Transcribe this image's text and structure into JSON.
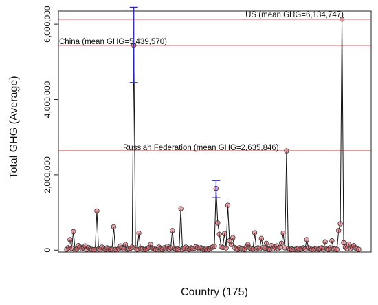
{
  "chart_data": {
    "type": "line",
    "title": "",
    "xlabel": "Country (175)",
    "ylabel": "Total GHG (Average)",
    "ylim": [
      -50000,
      6350000
    ],
    "yticks": [
      0,
      2000000,
      4000000,
      6000000
    ],
    "ytick_labels": [
      "0",
      "2,000,000",
      "4,000,000",
      "6,000,000"
    ],
    "x_count": 175,
    "grid": false,
    "colors": {
      "line": "#111111",
      "marker": "#e0606a",
      "marker_edge": "#333333",
      "reference": "#c0392b",
      "error_bar": "#2a2aa8"
    },
    "reference_lines": [
      {
        "label": "US (mean GHG=6,134,747)",
        "value": 6134747
      },
      {
        "label": "China (mean GHG=5,439,570)",
        "value": 5439570
      },
      {
        "label": "Russian Federation (mean GHG=2,635,846)",
        "value": 2635846
      }
    ],
    "error_bars": [
      {
        "x": 40,
        "low": 4450000,
        "high": 6450000
      },
      {
        "x": 89,
        "low": 1390000,
        "high": 1850000
      }
    ],
    "values": [
      20000,
      60000,
      280000,
      50000,
      490000,
      10000,
      30000,
      120000,
      80000,
      40000,
      60000,
      110000,
      20000,
      70000,
      30000,
      20000,
      10000,
      20000,
      1040000,
      30000,
      10000,
      80000,
      40000,
      20000,
      60000,
      30000,
      20000,
      30000,
      620000,
      20000,
      10000,
      40000,
      110000,
      60000,
      30000,
      150000,
      20000,
      40000,
      50000,
      80000,
      5439570,
      60000,
      20000,
      450000,
      40000,
      30000,
      10000,
      20000,
      40000,
      70000,
      150000,
      60000,
      40000,
      20000,
      10000,
      80000,
      30000,
      20000,
      60000,
      40000,
      100000,
      30000,
      60000,
      520000,
      40000,
      20000,
      30000,
      10000,
      1100000,
      30000,
      50000,
      80000,
      40000,
      20000,
      60000,
      40000,
      50000,
      90000,
      70000,
      40000,
      60000,
      30000,
      20000,
      40000,
      10000,
      30000,
      60000,
      80000,
      100000,
      1640000,
      720000,
      420000,
      100000,
      70000,
      440000,
      60000,
      1190000,
      250000,
      150000,
      330000,
      70000,
      40000,
      20000,
      60000,
      30000,
      40000,
      20000,
      80000,
      150000,
      60000,
      40000,
      30000,
      460000,
      30000,
      60000,
      40000,
      310000,
      70000,
      50000,
      180000,
      30000,
      20000,
      120000,
      40000,
      80000,
      110000,
      40000,
      70000,
      180000,
      450000,
      60000,
      2635846,
      40000,
      20000,
      30000,
      10000,
      20000,
      30000,
      50000,
      20000,
      40000,
      60000,
      30000,
      280000,
      60000,
      40000,
      20000,
      10000,
      30000,
      50000,
      20000,
      40000,
      60000,
      30000,
      220000,
      40000,
      20000,
      60000,
      250000,
      30000,
      40000,
      20000,
      520000,
      700000,
      6134747,
      200000,
      80000,
      40000,
      160000,
      40000,
      90000,
      120000,
      60000,
      40000,
      20000
    ]
  }
}
